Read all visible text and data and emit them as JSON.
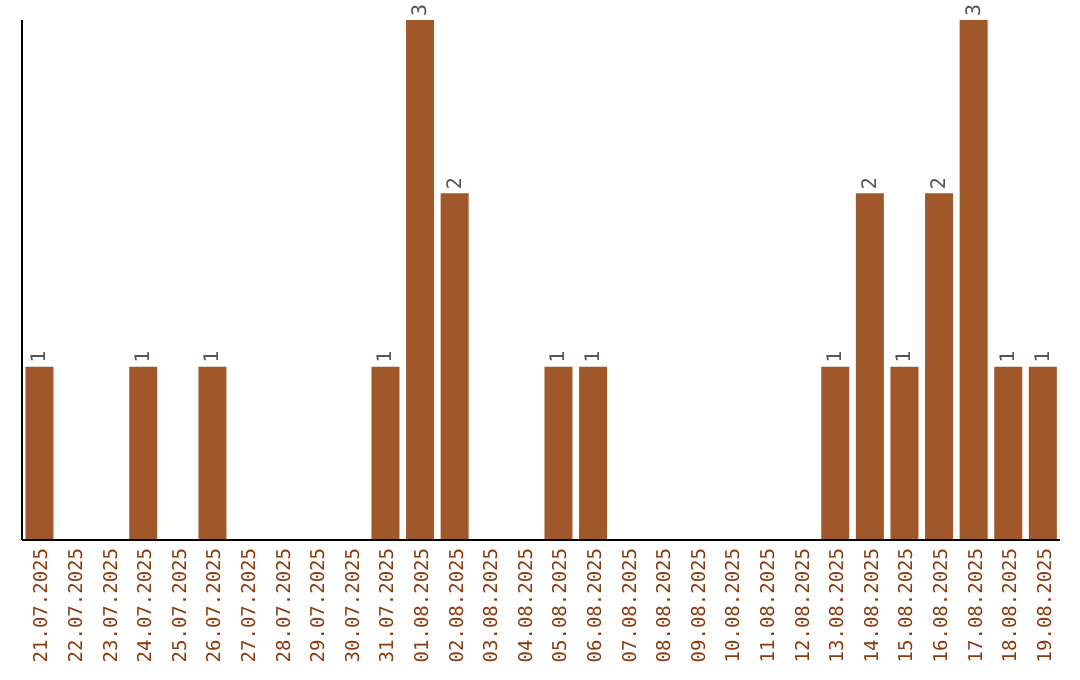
{
  "chart_data": {
    "type": "bar",
    "categories": [
      "21.07.2025",
      "22.07.2025",
      "23.07.2025",
      "24.07.2025",
      "25.07.2025",
      "26.07.2025",
      "27.07.2025",
      "28.07.2025",
      "29.07.2025",
      "30.07.2025",
      "31.07.2025",
      "01.08.2025",
      "02.08.2025",
      "03.08.2025",
      "04.08.2025",
      "05.08.2025",
      "06.08.2025",
      "07.08.2025",
      "08.08.2025",
      "09.08.2025",
      "10.08.2025",
      "11.08.2025",
      "12.08.2025",
      "13.08.2025",
      "14.08.2025",
      "15.08.2025",
      "16.08.2025",
      "17.08.2025",
      "18.08.2025",
      "19.08.2025"
    ],
    "values": [
      1,
      0,
      0,
      1,
      0,
      1,
      0,
      0,
      0,
      0,
      1,
      3,
      2,
      0,
      0,
      1,
      1,
      0,
      0,
      0,
      0,
      0,
      0,
      1,
      2,
      1,
      2,
      3,
      1,
      1
    ],
    "value_labels": [
      "1",
      null,
      null,
      "1",
      null,
      "1",
      null,
      null,
      null,
      null,
      "1",
      "3",
      "2",
      null,
      null,
      "1",
      "1",
      null,
      null,
      null,
      null,
      null,
      null,
      "1",
      "2",
      "1",
      "2",
      "3",
      "1",
      "1"
    ],
    "color": "#a0582a",
    "ylim": [
      0,
      3
    ]
  }
}
